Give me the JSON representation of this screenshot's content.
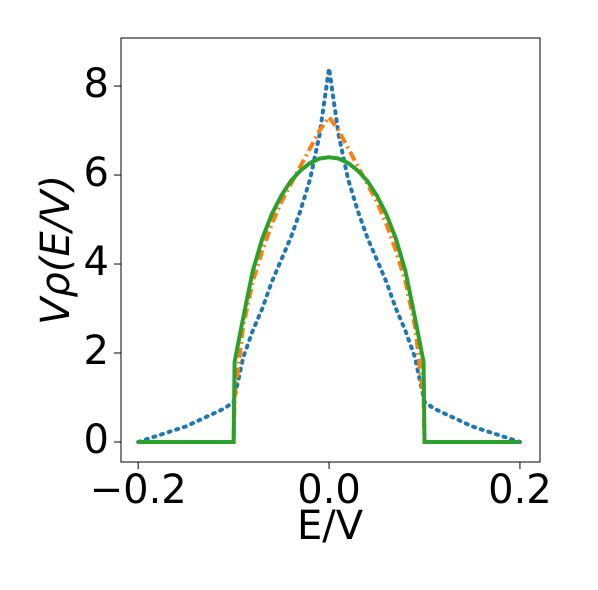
{
  "chart_data": {
    "type": "line",
    "xlabel": "E/V",
    "ylabel": "Vρ(E/V)",
    "x": [
      -0.2,
      -0.15,
      -0.11,
      -0.1,
      -0.099,
      -0.09,
      -0.08,
      -0.07,
      -0.06,
      -0.05,
      -0.04,
      -0.03,
      -0.02,
      -0.01,
      0,
      0.01,
      0.02,
      0.03,
      0.04,
      0.05,
      0.06,
      0.07,
      0.08,
      0.09,
      0.099,
      0.1,
      0.11,
      0.15,
      0.2
    ],
    "series": [
      {
        "color": "#1f77b4",
        "dash": "dotted",
        "values": [
          0,
          0.35,
          0.75,
          0.9,
          1.0,
          1.9,
          2.5,
          3.0,
          3.6,
          4.1,
          4.6,
          5.2,
          5.9,
          6.9,
          8.4,
          6.9,
          5.9,
          5.2,
          4.6,
          4.1,
          3.6,
          3.0,
          2.5,
          1.9,
          1.0,
          0.9,
          0.75,
          0.35,
          0
        ]
      },
      {
        "color": "#ff7f0e",
        "dash": "dashdot",
        "values": [
          0,
          0,
          0,
          0,
          1.0,
          2.6,
          3.6,
          4.3,
          4.9,
          5.4,
          5.8,
          6.2,
          6.6,
          7.0,
          7.3,
          7.0,
          6.6,
          6.2,
          5.8,
          5.4,
          4.9,
          4.3,
          3.6,
          2.6,
          1.0,
          0,
          0,
          0,
          0
        ]
      },
      {
        "color": "#2ca02c",
        "dash": "solid",
        "values": [
          0,
          0,
          0,
          0,
          1.8,
          2.79,
          3.84,
          4.57,
          5.12,
          5.54,
          5.87,
          6.1,
          6.27,
          6.37,
          6.4,
          6.37,
          6.27,
          6.1,
          5.87,
          5.54,
          5.12,
          4.57,
          3.84,
          2.79,
          1.8,
          0,
          0,
          0,
          0
        ]
      }
    ],
    "xlim": [
      -0.218,
      0.221
    ],
    "ylim": [
      -0.45,
      9.08
    ],
    "xticks": [
      {
        "value": -0.2,
        "label": "−0.2"
      },
      {
        "value": 0,
        "label": "0.0"
      },
      0.2
    ],
    "yticks": [
      0,
      2,
      4,
      6,
      8
    ]
  }
}
